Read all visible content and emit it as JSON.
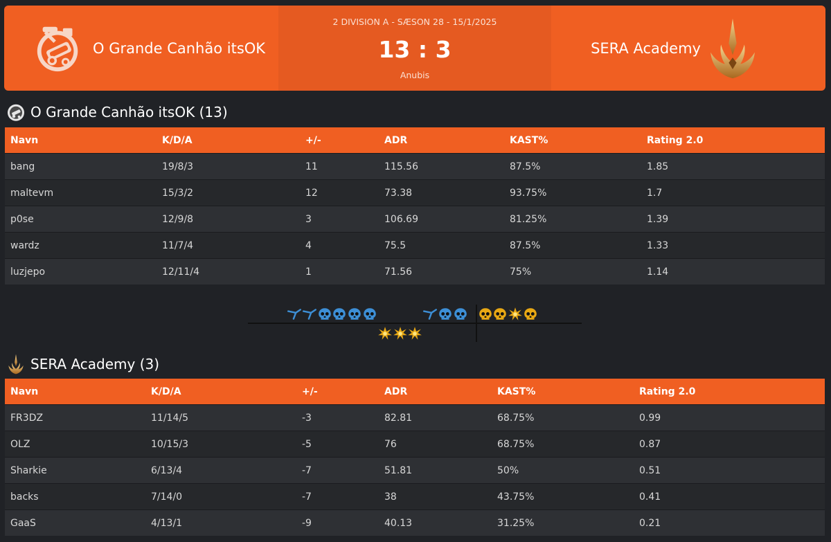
{
  "match": {
    "division": "2 DIVISION A - SÆSON 28 - 15/1/2025",
    "score": "13 : 3",
    "map": "Anubis",
    "team1": {
      "name": "O Grande Canhão itsOK",
      "heading": "O Grande Canhão itsOK (13)",
      "logo": "cannon-logo-icon"
    },
    "team2": {
      "name": "SERA Academy",
      "heading": "SERA Academy (3)",
      "logo": "gold-crown-logo-icon"
    }
  },
  "colors": {
    "accent": "#f05f22",
    "background": "#202226",
    "ct_blue": "#3d8fd6",
    "t_gold": "#e8a814"
  },
  "table_headers": [
    "Navn",
    "K/D/A",
    "+/-",
    "ADR",
    "KAST%",
    "Rating 2.0"
  ],
  "team1_players": [
    {
      "name": "bang",
      "kda": "19/8/3",
      "pm": "11",
      "adr": "115.56",
      "kast": "87.5%",
      "rating": "1.85"
    },
    {
      "name": "maltevm",
      "kda": "15/3/2",
      "pm": "12",
      "adr": "73.38",
      "kast": "93.75%",
      "rating": "1.7"
    },
    {
      "name": "p0se",
      "kda": "12/9/8",
      "pm": "3",
      "adr": "106.69",
      "kast": "81.25%",
      "rating": "1.39"
    },
    {
      "name": "wardz",
      "kda": "11/7/4",
      "pm": "4",
      "adr": "75.5",
      "kast": "87.5%",
      "rating": "1.33"
    },
    {
      "name": "luzjepo",
      "kda": "12/11/4",
      "pm": "1",
      "adr": "71.56",
      "kast": "75%",
      "rating": "1.14"
    }
  ],
  "team2_players": [
    {
      "name": "FR3DZ",
      "kda": "11/14/5",
      "pm": "-3",
      "adr": "82.81",
      "kast": "68.75%",
      "rating": "0.99"
    },
    {
      "name": "OLZ",
      "kda": "10/15/3",
      "pm": "-5",
      "adr": "76",
      "kast": "68.75%",
      "rating": "0.87"
    },
    {
      "name": "Sharkie",
      "kda": "6/13/4",
      "pm": "-7",
      "adr": "51.81",
      "kast": "50%",
      "rating": "0.51"
    },
    {
      "name": "backs",
      "kda": "7/14/0",
      "pm": "-7",
      "adr": "38",
      "kast": "43.75%",
      "rating": "0.41"
    },
    {
      "name": "GaaS",
      "kda": "4/13/1",
      "pm": "-9",
      "adr": "40.13",
      "kast": "31.25%",
      "rating": "0.21"
    }
  ],
  "rounds": [
    {
      "round": 1,
      "winner": "team1",
      "outcome": "defuse",
      "side": "ct"
    },
    {
      "round": 2,
      "winner": "team1",
      "outcome": "defuse",
      "side": "ct"
    },
    {
      "round": 3,
      "winner": "team1",
      "outcome": "elimination",
      "side": "ct"
    },
    {
      "round": 4,
      "winner": "team1",
      "outcome": "elimination",
      "side": "ct"
    },
    {
      "round": 5,
      "winner": "team1",
      "outcome": "elimination",
      "side": "ct"
    },
    {
      "round": 6,
      "winner": "team1",
      "outcome": "elimination",
      "side": "ct"
    },
    {
      "round": 7,
      "winner": "team2",
      "outcome": "bomb",
      "side": "t"
    },
    {
      "round": 8,
      "winner": "team2",
      "outcome": "bomb",
      "side": "t"
    },
    {
      "round": 9,
      "winner": "team2",
      "outcome": "bomb",
      "side": "t"
    },
    {
      "round": 10,
      "winner": "team1",
      "outcome": "defuse",
      "side": "ct"
    },
    {
      "round": 11,
      "winner": "team1",
      "outcome": "elimination",
      "side": "ct"
    },
    {
      "round": 12,
      "winner": "team1",
      "outcome": "elimination",
      "side": "ct"
    },
    {
      "round": 13,
      "winner": "team1",
      "outcome": "elimination",
      "side": "t"
    },
    {
      "round": 14,
      "winner": "team1",
      "outcome": "elimination",
      "side": "t"
    },
    {
      "round": 15,
      "winner": "team1",
      "outcome": "bomb",
      "side": "t"
    },
    {
      "round": 16,
      "winner": "team1",
      "outcome": "elimination",
      "side": "t"
    }
  ]
}
